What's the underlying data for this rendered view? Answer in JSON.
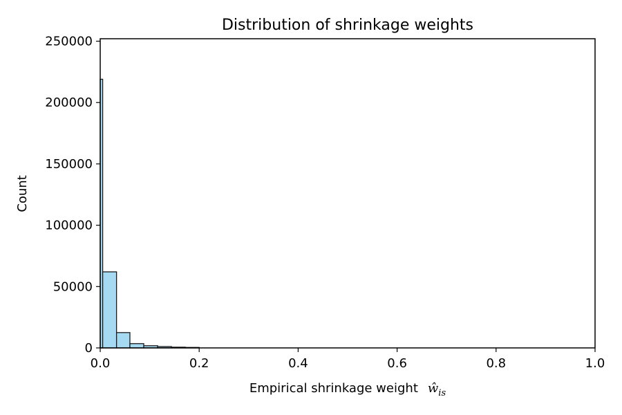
{
  "chart_data": {
    "type": "bar",
    "title": "Distribution of shrinkage weights",
    "xlabel": "Empirical shrinkage weight",
    "xlabel_symbol": "ŵ",
    "xlabel_subscript": "is",
    "ylabel": "Count",
    "xlim": [
      0.0,
      1.0
    ],
    "ylim": [
      0,
      252000
    ],
    "x_ticks": [
      "0.0",
      "0.2",
      "0.4",
      "0.6",
      "0.8",
      "1.0"
    ],
    "y_ticks": [
      "0",
      "50000",
      "100000",
      "150000",
      "200000",
      "250000"
    ],
    "bar_color": "#a6d9f2",
    "edge_color": "#1a1a1a",
    "grid": false,
    "bins": [
      {
        "x0": 0.0,
        "x1": 0.005,
        "value": 219000
      },
      {
        "x0": 0.005,
        "x1": 0.033,
        "value": 62000
      },
      {
        "x0": 0.033,
        "x1": 0.06,
        "value": 12500
      },
      {
        "x0": 0.06,
        "x1": 0.088,
        "value": 3500
      },
      {
        "x0": 0.088,
        "x1": 0.116,
        "value": 1800
      },
      {
        "x0": 0.116,
        "x1": 0.144,
        "value": 1100
      },
      {
        "x0": 0.144,
        "x1": 0.172,
        "value": 600
      },
      {
        "x0": 0.172,
        "x1": 0.2,
        "value": 400
      }
    ]
  }
}
